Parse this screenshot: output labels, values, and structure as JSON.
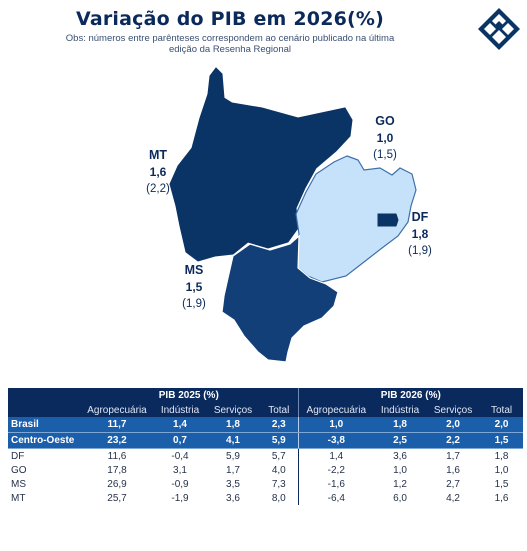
{
  "title": "Variação do PIB em 2026(%)",
  "subtitle": "Obs: números entre parênteses correspondem ao cenário publicado na última edição da Resenha Regional",
  "colors": {
    "dark_navy": "#0b3466",
    "navy": "#123f78",
    "light_blue": "#c6e2fb",
    "row_highlight": "#1b5fab",
    "header": "#0a2a5e"
  },
  "map": {
    "states": [
      {
        "code": "MT",
        "value": "1,6",
        "previous": "(2,2)"
      },
      {
        "code": "GO",
        "value": "1,0",
        "previous": "(1,5)"
      },
      {
        "code": "DF",
        "value": "1,8",
        "previous": "(1,9)"
      },
      {
        "code": "MS",
        "value": "1,5",
        "previous": "(1,9)"
      }
    ]
  },
  "table": {
    "group_2025": "PIB 2025 (%)",
    "group_2026": "PIB 2026 (%)",
    "columns": [
      "Agropecuária",
      "Indústria",
      "Serviços",
      "Total"
    ],
    "rows": [
      {
        "name": "Brasil",
        "v2025": [
          "11,7",
          "1,4",
          "1,8",
          "2,3"
        ],
        "v2026": [
          "1,0",
          "1,8",
          "2,0",
          "2,0"
        ]
      },
      {
        "name": "Centro-Oeste",
        "v2025": [
          "23,2",
          "0,7",
          "4,1",
          "5,9"
        ],
        "v2026": [
          "-3,8",
          "2,5",
          "2,2",
          "1,5"
        ]
      },
      {
        "name": "DF",
        "v2025": [
          "11,6",
          "-0,4",
          "5,9",
          "5,7"
        ],
        "v2026": [
          "1,4",
          "3,6",
          "1,7",
          "1,8"
        ]
      },
      {
        "name": "GO",
        "v2025": [
          "17,8",
          "3,1",
          "1,7",
          "4,0"
        ],
        "v2026": [
          "-2,2",
          "1,0",
          "1,6",
          "1,0"
        ]
      },
      {
        "name": "MS",
        "v2025": [
          "26,9",
          "-0,9",
          "3,5",
          "7,3"
        ],
        "v2026": [
          "-1,6",
          "1,2",
          "2,7",
          "1,5"
        ]
      },
      {
        "name": "MT",
        "v2025": [
          "25,7",
          "-1,9",
          "3,6",
          "8,0"
        ],
        "v2026": [
          "-6,4",
          "6,0",
          "4,2",
          "1,6"
        ]
      }
    ]
  }
}
